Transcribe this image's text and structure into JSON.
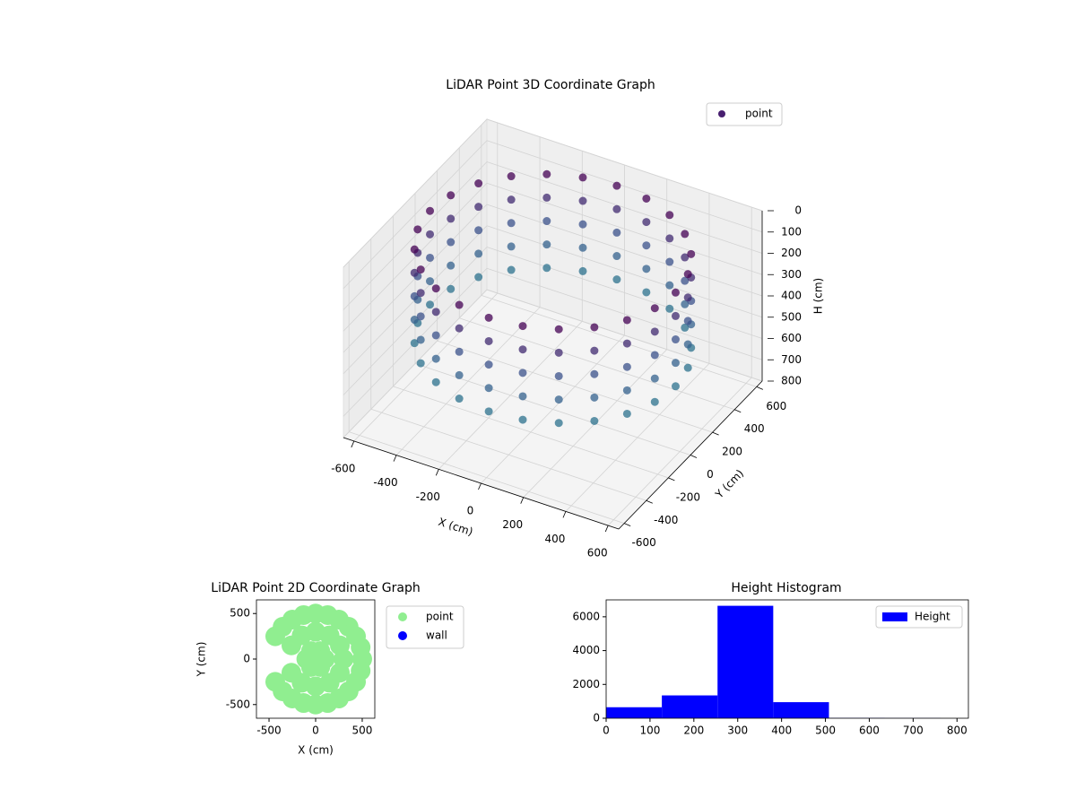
{
  "chart_data": [
    {
      "type": "scatter3d",
      "title": "LiDAR Point 3D Coordinate Graph",
      "xlabel": "X (cm)",
      "ylabel": "Y (cm)",
      "zlabel": "H (cm)",
      "xlim": [
        -650,
        650
      ],
      "ylim": [
        -650,
        650
      ],
      "zlim": [
        0,
        800
      ],
      "z_inverted": true,
      "xticks": [
        -600,
        -400,
        -200,
        0,
        200,
        400,
        600
      ],
      "yticks": [
        -600,
        -400,
        -200,
        0,
        200,
        400,
        600
      ],
      "zticks": [
        0,
        100,
        200,
        300,
        400,
        500,
        600,
        700,
        800
      ],
      "grid": true,
      "legend": "upper right",
      "colormap": [
        "#440154",
        "#3b528b",
        "#2c728e"
      ],
      "series": [
        {
          "name": "point",
          "color": "#481f70",
          "x": [
            580,
            560,
            502,
            410,
            290,
            150,
            0,
            -150,
            -290,
            -410,
            -502,
            -560,
            -580,
            -560,
            -502,
            -410,
            -290,
            -150,
            0,
            150,
            290,
            410,
            502,
            560,
            580,
            560,
            502,
            410,
            290,
            150,
            0,
            -150,
            -290,
            -410,
            -502,
            -560,
            -580,
            -560,
            -502,
            -410,
            -290,
            -150,
            0,
            150,
            290,
            410,
            502,
            560,
            580,
            560,
            502,
            410,
            290,
            150,
            0,
            -150,
            -290,
            -410,
            -502,
            -560,
            -580,
            -560,
            -502,
            -410,
            -290,
            -150,
            0,
            150,
            290,
            410,
            502,
            560,
            580,
            560,
            502,
            410,
            290,
            150,
            0,
            -150,
            -290,
            -410,
            -502,
            -560,
            -580,
            -560,
            -502,
            -410,
            -290,
            -150,
            0,
            150,
            290,
            410,
            502,
            560,
            580,
            560,
            502,
            410,
            290,
            150,
            0,
            -150,
            -290,
            -410,
            -502,
            -560,
            -580,
            -560,
            -502,
            -410,
            -290,
            -150,
            0,
            150,
            290,
            410,
            502,
            560
          ],
          "y": [
            0,
            150,
            290,
            410,
            502,
            560,
            580,
            560,
            502,
            410,
            290,
            150,
            0,
            -150,
            -290,
            -410,
            -502,
            -560,
            -580,
            -560,
            -502,
            -410,
            -290,
            -150,
            0,
            150,
            290,
            410,
            502,
            560,
            580,
            560,
            502,
            410,
            290,
            150,
            0,
            -150,
            -290,
            -410,
            -502,
            -560,
            -580,
            -560,
            -502,
            -410,
            -290,
            -150,
            0,
            150,
            290,
            410,
            502,
            560,
            580,
            560,
            502,
            410,
            290,
            150,
            0,
            -150,
            -290,
            -410,
            -502,
            -560,
            -580,
            -560,
            -502,
            -410,
            -290,
            -150,
            0,
            150,
            290,
            410,
            502,
            560,
            580,
            560,
            502,
            410,
            290,
            150,
            0,
            -150,
            -290,
            -410,
            -502,
            -560,
            -580,
            -560,
            -502,
            -410,
            -290,
            -150,
            0,
            150,
            290,
            410,
            502,
            560,
            580,
            560,
            502,
            410,
            290,
            150,
            0,
            -150,
            -290,
            -410,
            -502,
            -560,
            -580,
            -560,
            -502,
            -410,
            -290,
            -150
          ],
          "z": [
            60,
            60,
            60,
            60,
            60,
            60,
            60,
            60,
            60,
            60,
            60,
            60,
            60,
            60,
            60,
            60,
            60,
            60,
            60,
            60,
            60,
            60,
            60,
            60,
            170,
            170,
            170,
            170,
            170,
            170,
            170,
            170,
            170,
            170,
            170,
            170,
            170,
            170,
            170,
            170,
            170,
            170,
            170,
            170,
            170,
            170,
            170,
            170,
            280,
            280,
            280,
            280,
            280,
            280,
            280,
            280,
            280,
            280,
            280,
            280,
            280,
            280,
            280,
            280,
            280,
            280,
            280,
            280,
            280,
            280,
            280,
            280,
            390,
            390,
            390,
            390,
            390,
            390,
            390,
            390,
            390,
            390,
            390,
            390,
            390,
            390,
            390,
            390,
            390,
            390,
            390,
            390,
            390,
            390,
            390,
            390,
            500,
            500,
            500,
            500,
            500,
            500,
            500,
            500,
            500,
            500,
            500,
            500,
            500,
            500,
            500,
            500,
            500,
            500,
            500,
            500,
            500,
            500,
            500,
            500
          ]
        }
      ]
    },
    {
      "type": "scatter",
      "title": "LiDAR Point 2D Coordinate Graph",
      "xlabel": "X (cm)",
      "ylabel": "Y (cm)",
      "xlim": [
        -635,
        635
      ],
      "ylim": [
        -650,
        650
      ],
      "xticks": [
        -500,
        0,
        500
      ],
      "yticks": [
        -500,
        0,
        500
      ],
      "legend": "outside upper right",
      "series": [
        {
          "name": "point",
          "color": "#90ee90",
          "x": [
            500,
            483,
            433,
            354,
            250,
            129,
            0,
            -129,
            -250,
            -354,
            -433,
            -433,
            -354,
            -250,
            -129,
            0,
            129,
            250,
            354,
            433,
            483,
            300,
            260,
            150,
            0,
            -150,
            -260,
            -260,
            -150,
            0,
            150,
            260,
            100,
            50,
            -50,
            -100,
            -50,
            50,
            0
          ],
          "y": [
            0,
            129,
            250,
            354,
            433,
            483,
            500,
            483,
            433,
            354,
            250,
            -250,
            -354,
            -433,
            -483,
            -500,
            -483,
            -433,
            -354,
            -250,
            -129,
            0,
            150,
            260,
            300,
            260,
            150,
            -150,
            -260,
            -300,
            -260,
            -150,
            0,
            87,
            87,
            0,
            -87,
            -87,
            0
          ]
        },
        {
          "name": "wall",
          "color": "#0000ff",
          "x": [],
          "y": []
        }
      ]
    },
    {
      "type": "histogram",
      "title": "Height Histogram",
      "label": "Height",
      "color": "#0000ff",
      "bins": [
        0,
        127,
        254,
        381,
        508,
        635,
        762
      ],
      "counts": [
        650,
        1350,
        6650,
        950,
        15,
        10
      ],
      "xlim": [
        0,
        826
      ],
      "ylim": [
        0,
        7000
      ],
      "xticks": [
        0,
        100,
        200,
        300,
        400,
        500,
        600,
        700,
        800
      ],
      "yticks": [
        0,
        2000,
        4000,
        6000
      ],
      "legend": "upper right"
    }
  ]
}
